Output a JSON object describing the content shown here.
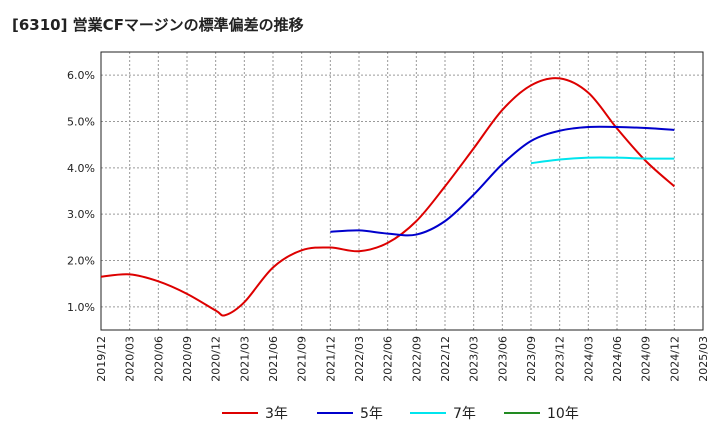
{
  "chart_data": {
    "type": "line",
    "title": "[6310]  営業CFマージンの標準偏差の推移",
    "xlabel": "",
    "ylabel": "",
    "ylim": [
      0.5,
      6.5
    ],
    "yticks": [
      "1.0%",
      "2.0%",
      "3.0%",
      "4.0%",
      "5.0%",
      "6.0%"
    ],
    "ytick_values": [
      1,
      2,
      3,
      4,
      5,
      6
    ],
    "xticks": [
      "2019/12",
      "2020/03",
      "2020/06",
      "2020/09",
      "2020/12",
      "2021/03",
      "2021/06",
      "2021/09",
      "2021/12",
      "2022/03",
      "2022/06",
      "2022/09",
      "2022/12",
      "2023/03",
      "2023/06",
      "2023/09",
      "2023/12",
      "2024/03",
      "2024/06",
      "2024/09",
      "2024/12",
      "2025/03"
    ],
    "grid": true,
    "legend_position": "bottom",
    "series": [
      {
        "name": "3年",
        "color": "#dd0000",
        "x": [
          "2019/12",
          "2020/03",
          "2020/06",
          "2020/09",
          "2020/12",
          "2021/01",
          "2021/03",
          "2021/06",
          "2021/09",
          "2021/12",
          "2022/03",
          "2022/06",
          "2022/09",
          "2022/12",
          "2023/03",
          "2023/06",
          "2023/09",
          "2023/12",
          "2024/03",
          "2024/06",
          "2024/09",
          "2024/12"
        ],
        "values": [
          1.65,
          1.7,
          1.55,
          1.28,
          0.92,
          0.82,
          1.1,
          1.85,
          2.22,
          2.28,
          2.2,
          2.38,
          2.85,
          3.6,
          4.42,
          5.25,
          5.78,
          5.93,
          5.62,
          4.85,
          4.15,
          3.6
        ]
      },
      {
        "name": "5年",
        "color": "#0000cc",
        "x": [
          "2021/12",
          "2022/03",
          "2022/06",
          "2022/09",
          "2022/12",
          "2023/03",
          "2023/06",
          "2023/09",
          "2023/12",
          "2024/03",
          "2024/06",
          "2024/09",
          "2024/12"
        ],
        "values": [
          2.62,
          2.65,
          2.58,
          2.56,
          2.85,
          3.42,
          4.08,
          4.58,
          4.8,
          4.88,
          4.88,
          4.86,
          4.82
        ]
      },
      {
        "name": "7年",
        "color": "#00e5ee",
        "x": [
          "2023/09",
          "2023/12",
          "2024/03",
          "2024/06",
          "2024/09",
          "2024/12"
        ],
        "values": [
          4.1,
          4.18,
          4.22,
          4.22,
          4.2,
          4.2
        ]
      },
      {
        "name": "10年",
        "color": "#228b22",
        "x": [],
        "values": []
      }
    ]
  }
}
